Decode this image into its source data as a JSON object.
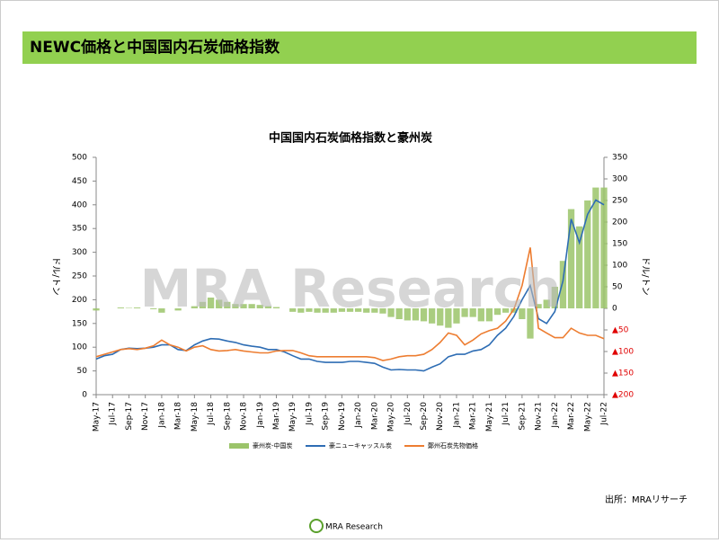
{
  "header": {
    "title": "NEWC価格と中国国内石炭価格指数"
  },
  "chart_data": {
    "type": "bar-line",
    "title": "中国国内石炭価格指数と豪州炭",
    "y_label": "ドル/トン",
    "y2_label": "ドル/トン",
    "categories": [
      "May-17",
      null,
      "Jul-17",
      null,
      "Sep-17",
      null,
      "Nov-17",
      null,
      "Jan-18",
      null,
      "Mar-18",
      null,
      "May-18",
      null,
      "Jul-18",
      null,
      "Sep-18",
      null,
      "Nov-18",
      null,
      "Jan-19",
      null,
      "Mar-19",
      null,
      "May-19",
      null,
      "Jul-19",
      null,
      "Sep-19",
      null,
      "Nov-19",
      null,
      "Jan-20",
      null,
      "Mar-20",
      null,
      "May-20",
      null,
      "Jul-20",
      null,
      "Sep-20",
      null,
      "Nov-20",
      null,
      "Jan-21",
      null,
      "Mar-21",
      null,
      "May-21",
      null,
      "Jul-21",
      null,
      "Sep-21",
      null,
      "Nov-21",
      null,
      "Jan-22",
      null,
      "Mar-22",
      null,
      "May-22",
      null,
      "Jul-22"
    ],
    "series": [
      {
        "name": "豪州炭-中国炭",
        "type": "bar",
        "axis": "y2",
        "color": "#9bc46a",
        "values": [
          -5,
          0,
          0,
          2,
          1,
          2,
          0,
          -2,
          -10,
          0,
          -5,
          0,
          5,
          15,
          25,
          20,
          15,
          10,
          10,
          10,
          8,
          5,
          3,
          0,
          -8,
          -10,
          -8,
          -10,
          -10,
          -10,
          -8,
          -8,
          -8,
          -10,
          -10,
          -12,
          -20,
          -25,
          -28,
          -28,
          -30,
          -35,
          -40,
          -45,
          -35,
          -20,
          -20,
          -30,
          -30,
          -15,
          -10,
          -10,
          -25,
          -70,
          10,
          20,
          50,
          110,
          230,
          190,
          250,
          280,
          280
        ]
      },
      {
        "name": "豪ニューキャッスル炭",
        "type": "line",
        "color": "#2e6db4",
        "values": [
          75,
          82,
          85,
          95,
          98,
          97,
          98,
          100,
          105,
          105,
          95,
          93,
          105,
          113,
          118,
          117,
          113,
          110,
          105,
          102,
          100,
          95,
          95,
          90,
          82,
          75,
          75,
          70,
          68,
          68,
          68,
          70,
          70,
          68,
          66,
          58,
          52,
          53,
          52,
          52,
          50,
          58,
          65,
          80,
          85,
          85,
          92,
          95,
          105,
          125,
          140,
          165,
          200,
          230,
          160,
          150,
          175,
          240,
          370,
          320,
          380,
          410,
          400
        ]
      },
      {
        "name": "鄭州石炭先物価格",
        "type": "line",
        "color": "#ed7d31",
        "values": [
          80,
          85,
          90,
          95,
          97,
          95,
          98,
          103,
          115,
          105,
          100,
          92,
          100,
          103,
          95,
          92,
          93,
          95,
          92,
          90,
          88,
          88,
          92,
          93,
          93,
          88,
          82,
          80,
          80,
          80,
          80,
          80,
          80,
          80,
          78,
          72,
          75,
          80,
          82,
          82,
          85,
          95,
          110,
          130,
          125,
          105,
          115,
          128,
          135,
          140,
          155,
          180,
          230,
          310,
          140,
          130,
          120,
          120,
          140,
          130,
          125,
          125,
          118
        ]
      }
    ],
    "ylim": [
      0,
      500
    ],
    "yticks": [
      0,
      50,
      100,
      150,
      200,
      250,
      300,
      350,
      400,
      450,
      500
    ],
    "y2lim": [
      -200,
      350
    ],
    "y2ticks": [
      {
        "value": -200,
        "label": "▲200"
      },
      {
        "value": -150,
        "label": "▲150"
      },
      {
        "value": -100,
        "label": "▲100"
      },
      {
        "value": -50,
        "label": "▲50"
      },
      0,
      50,
      100,
      150,
      200,
      250,
      300,
      350
    ],
    "negative_label_color": "#e00000",
    "watermark": "MRA Research"
  },
  "source": "出所：MRAリサーチ",
  "footer": {
    "logo": "MRA Research"
  }
}
